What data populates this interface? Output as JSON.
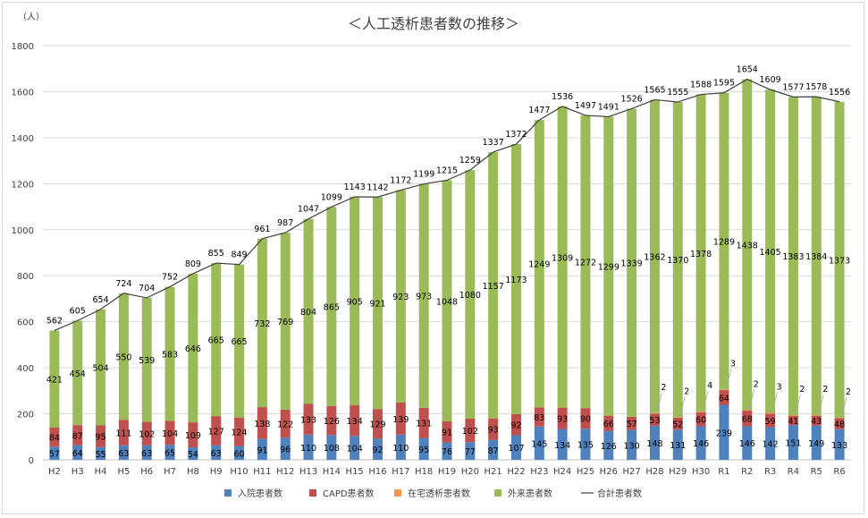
{
  "chart_data": {
    "type": "bar",
    "stacked": true,
    "title": "＜人工透析患者数の推移＞",
    "yunit": "（人）",
    "ylim": [
      0,
      1800
    ],
    "yticks": [
      0,
      200,
      400,
      600,
      800,
      1000,
      1200,
      1400,
      1600,
      1800
    ],
    "grid": true,
    "legend_position": "bottom",
    "categories": [
      "H2",
      "H3",
      "H4",
      "H5",
      "H6",
      "H7",
      "H8",
      "H9",
      "H10",
      "H11",
      "H12",
      "H13",
      "H14",
      "H15",
      "H16",
      "H17",
      "H18",
      "H19",
      "H20",
      "H21",
      "H22",
      "H23",
      "H24",
      "H25",
      "H26",
      "H27",
      "H28",
      "H29",
      "H30",
      "R1",
      "R2",
      "R3",
      "R4",
      "R5",
      "R6"
    ],
    "series": [
      {
        "name": "入院患者数",
        "color": "#4f81bd",
        "values": [
          57,
          64,
          55,
          63,
          63,
          65,
          54,
          63,
          60,
          91,
          96,
          110,
          108,
          104,
          92,
          110,
          95,
          76,
          77,
          87,
          107,
          145,
          134,
          135,
          126,
          130,
          148,
          131,
          146,
          239,
          146,
          142,
          151,
          149,
          133
        ]
      },
      {
        "name": "CAPD患者数",
        "color": "#c0504d",
        "values": [
          84,
          87,
          95,
          111,
          102,
          104,
          109,
          127,
          124,
          138,
          122,
          133,
          126,
          134,
          129,
          139,
          131,
          91,
          102,
          93,
          92,
          83,
          93,
          90,
          66,
          57,
          53,
          52,
          60,
          64,
          68,
          59,
          41,
          43,
          48
        ]
      },
      {
        "name": "在宅透析患者数",
        "color": "#f79646",
        "values": [
          null,
          null,
          null,
          null,
          null,
          null,
          null,
          null,
          null,
          null,
          null,
          null,
          null,
          null,
          null,
          null,
          null,
          null,
          null,
          null,
          null,
          null,
          null,
          null,
          null,
          null,
          2,
          2,
          4,
          3,
          2,
          3,
          2,
          2,
          2
        ]
      },
      {
        "name": "外来患者数",
        "color": "#9bbb59",
        "values": [
          421,
          454,
          504,
          550,
          539,
          583,
          646,
          665,
          665,
          732,
          769,
          804,
          865,
          905,
          921,
          923,
          973,
          1048,
          1080,
          1157,
          1173,
          1249,
          1309,
          1272,
          1299,
          1339,
          1362,
          1370,
          1378,
          1289,
          1438,
          1405,
          1383,
          1384,
          1373
        ]
      },
      {
        "name": "合計患者数",
        "type": "line",
        "color": "#404040",
        "values": [
          562,
          605,
          654,
          724,
          704,
          752,
          809,
          855,
          849,
          961,
          987,
          1047,
          1099,
          1143,
          1142,
          1172,
          1199,
          1215,
          1259,
          1337,
          1372,
          1477,
          1536,
          1497,
          1491,
          1526,
          1565,
          1555,
          1588,
          1595,
          1654,
          1609,
          1577,
          1578,
          1556
        ]
      }
    ]
  }
}
